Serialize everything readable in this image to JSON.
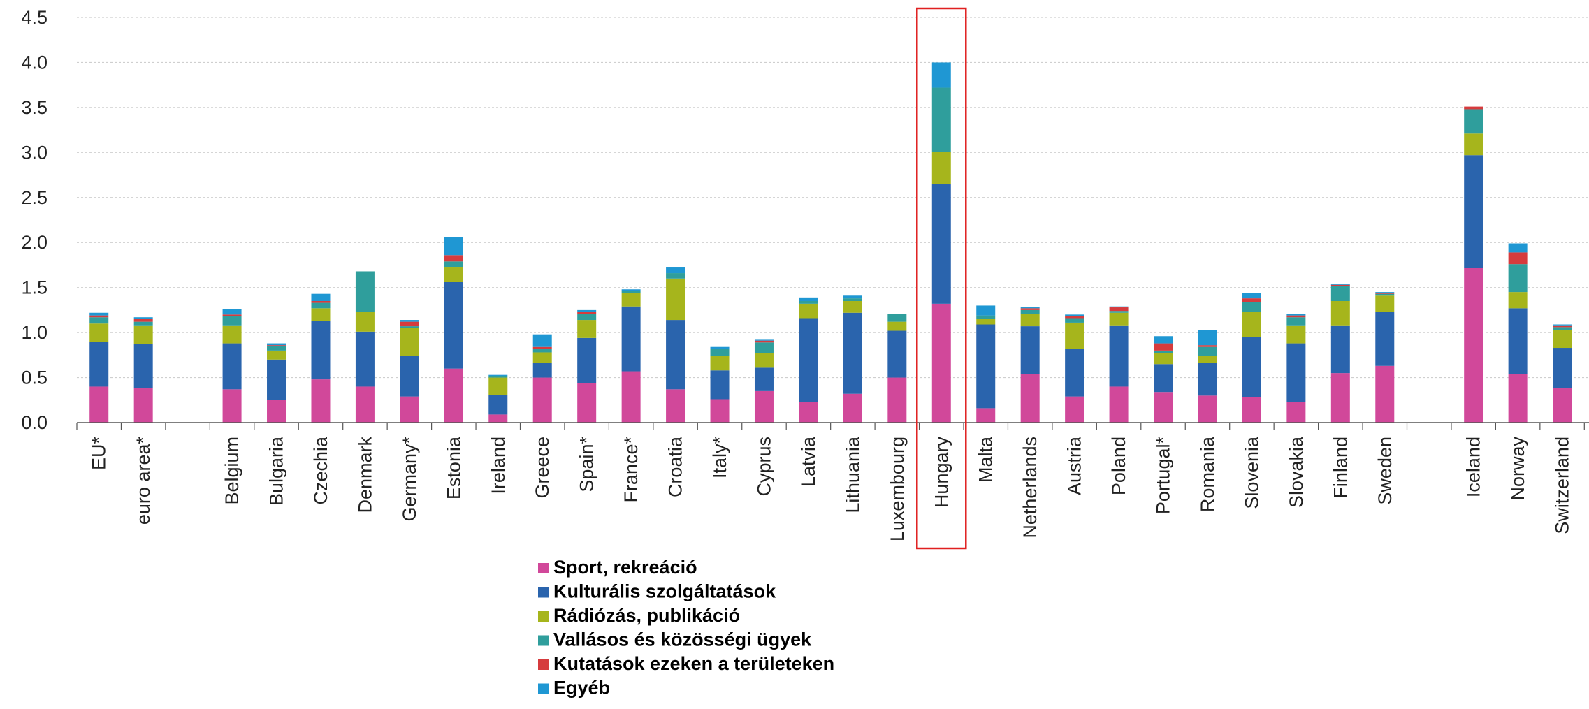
{
  "chart_data": {
    "type": "bar",
    "stacked": true,
    "ylim": [
      0,
      4.5
    ],
    "yticks": [
      "0.0",
      "0.5",
      "1.0",
      "1.5",
      "2.0",
      "2.5",
      "3.0",
      "3.5",
      "4.0",
      "4.5"
    ],
    "grid": true,
    "legend_position": "bottom-center",
    "highlight_category": "Hungary",
    "highlight_color": "#e02020",
    "categories": [
      "EU*",
      "euro area*",
      "",
      "Belgium",
      "Bulgaria",
      "Czechia",
      "Denmark",
      "Germany*",
      "Estonia",
      "Ireland",
      "Greece",
      "Spain*",
      "France*",
      "Croatia",
      "Italy*",
      "Cyprus",
      "Latvia",
      "Lithuania",
      "Luxembourg",
      "Hungary",
      "Malta",
      "Netherlands",
      "Austria",
      "Poland",
      "Portugal*",
      "Romania",
      "Slovenia",
      "Slovakia",
      "Finland",
      "Sweden",
      "",
      "Iceland",
      "Norway",
      "Switzerland"
    ],
    "series": [
      {
        "name": "Sport, rekreáció",
        "color": "#d1489a",
        "values": [
          0.4,
          0.38,
          0,
          0.37,
          0.25,
          0.48,
          0.4,
          0.29,
          0.6,
          0.09,
          0.5,
          0.44,
          0.57,
          0.37,
          0.26,
          0.35,
          0.23,
          0.32,
          0.5,
          1.32,
          0.16,
          0.54,
          0.29,
          0.4,
          0.34,
          0.3,
          0.28,
          0.23,
          0.55,
          0.63,
          0,
          1.72,
          0.54,
          0.38
        ]
      },
      {
        "name": "Kulturális szolgáltatások",
        "color": "#2a64ad",
        "values": [
          0.5,
          0.49,
          0,
          0.51,
          0.45,
          0.65,
          0.61,
          0.45,
          0.96,
          0.22,
          0.16,
          0.5,
          0.72,
          0.77,
          0.32,
          0.26,
          0.93,
          0.9,
          0.52,
          1.33,
          0.93,
          0.53,
          0.53,
          0.68,
          0.31,
          0.36,
          0.67,
          0.65,
          0.53,
          0.6,
          0,
          1.25,
          0.73,
          0.45
        ]
      },
      {
        "name": "Rádiózás, publikáció",
        "color": "#a6b51c",
        "values": [
          0.2,
          0.21,
          0,
          0.2,
          0.1,
          0.14,
          0.22,
          0.31,
          0.17,
          0.19,
          0.12,
          0.2,
          0.15,
          0.46,
          0.16,
          0.16,
          0.16,
          0.13,
          0.1,
          0.36,
          0.06,
          0.14,
          0.29,
          0.14,
          0.12,
          0.08,
          0.28,
          0.2,
          0.27,
          0.18,
          0,
          0.24,
          0.18,
          0.2
        ]
      },
      {
        "name": "Vallásos és közösségi ügyek",
        "color": "#2f9e9c",
        "values": [
          0.07,
          0.04,
          0,
          0.1,
          0.05,
          0.06,
          0.45,
          0.02,
          0.06,
          0.02,
          0.04,
          0.07,
          0.02,
          0.06,
          0.08,
          0.12,
          0.03,
          0.03,
          0.09,
          0.71,
          0.04,
          0.04,
          0.05,
          0.02,
          0.03,
          0.1,
          0.11,
          0.09,
          0.17,
          0.02,
          0,
          0.27,
          0.31,
          0.03
        ]
      },
      {
        "name": "Kutatások ezeken a területeken",
        "color": "#d63b3d",
        "values": [
          0.02,
          0.03,
          0,
          0.02,
          0.01,
          0.02,
          0,
          0.05,
          0.07,
          0,
          0.02,
          0.02,
          0,
          0,
          0,
          0.02,
          0,
          0,
          0,
          0,
          0,
          0.02,
          0.02,
          0.04,
          0.08,
          0.02,
          0.04,
          0.02,
          0.01,
          0.01,
          0,
          0.03,
          0.13,
          0.02
        ]
      },
      {
        "name": "Egyéb",
        "color": "#1f97d3",
        "values": [
          0.03,
          0.02,
          0,
          0.06,
          0.02,
          0.08,
          0,
          0.02,
          0.2,
          0.01,
          0.14,
          0.02,
          0.02,
          0.07,
          0.02,
          0.01,
          0.04,
          0.03,
          0,
          0.28,
          0.11,
          0.01,
          0.02,
          0.01,
          0.08,
          0.17,
          0.06,
          0.02,
          0.01,
          0.01,
          0,
          0,
          0.1,
          0.01
        ]
      }
    ]
  }
}
